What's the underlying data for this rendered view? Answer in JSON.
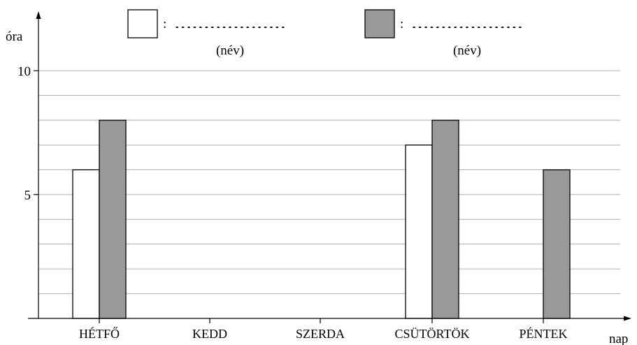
{
  "chart_data": {
    "type": "bar",
    "ylabel": "óra",
    "xlabel": "nap",
    "categories": [
      "HÉTFŐ",
      "KEDD",
      "SZERDA",
      "CSÜTÖRTÖK",
      "PÉNTEK"
    ],
    "series": [
      {
        "values": [
          6,
          null,
          null,
          7,
          null
        ],
        "color": "#ffffff"
      },
      {
        "values": [
          8,
          null,
          null,
          8,
          6
        ],
        "color": "#999999"
      }
    ],
    "ylim": [
      0,
      11.5
    ],
    "yticks": [
      5,
      10
    ],
    "grid_step": 1,
    "grid": true
  },
  "legend": {
    "entries": [
      {
        "colon": ":",
        "dots": "...................",
        "caption": "(név)",
        "color": "#ffffff"
      },
      {
        "colon": ":",
        "dots": "...................",
        "caption": "(név)",
        "color": "#999999"
      }
    ]
  }
}
